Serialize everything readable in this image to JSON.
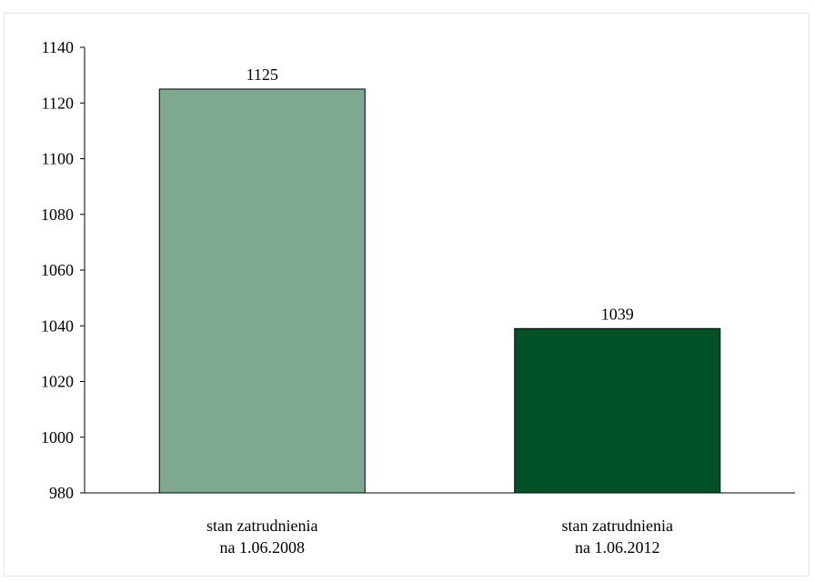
{
  "chart_data": {
    "type": "bar",
    "categories": [
      [
        "stan zatrudnienia",
        "na 1.06.2008"
      ],
      [
        "stan zatrudnienia",
        "na 1.06.2012"
      ]
    ],
    "values": [
      1125,
      1039
    ],
    "data_labels": [
      "1125",
      "1039"
    ],
    "bar_colors": [
      "#7fa891",
      "#005226"
    ],
    "ylim": [
      980,
      1140
    ],
    "yticks": [
      980,
      1000,
      1020,
      1040,
      1060,
      1080,
      1100,
      1120,
      1140
    ],
    "title": "",
    "xlabel": "",
    "ylabel": "",
    "grid": false,
    "legend": "none"
  }
}
